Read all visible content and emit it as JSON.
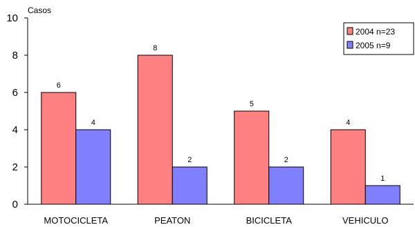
{
  "chart_data": {
    "type": "bar",
    "title": "",
    "xlabel": "",
    "ylabel": "Casos",
    "ylim": [
      0,
      10
    ],
    "yticks": [
      0,
      2,
      4,
      6,
      8,
      10
    ],
    "categories": [
      "MOTOCICLETA",
      "PEATON",
      "BICICLETA",
      "VEHICULO"
    ],
    "series": [
      {
        "name": "2004 n=23",
        "color": "#ff8080",
        "values": [
          6,
          8,
          5,
          4
        ]
      },
      {
        "name": "2005 n=9",
        "color": "#8080ff",
        "values": [
          4,
          2,
          2,
          1
        ]
      }
    ],
    "grid": false,
    "legend_position": "top-right",
    "data_labels": true
  }
}
